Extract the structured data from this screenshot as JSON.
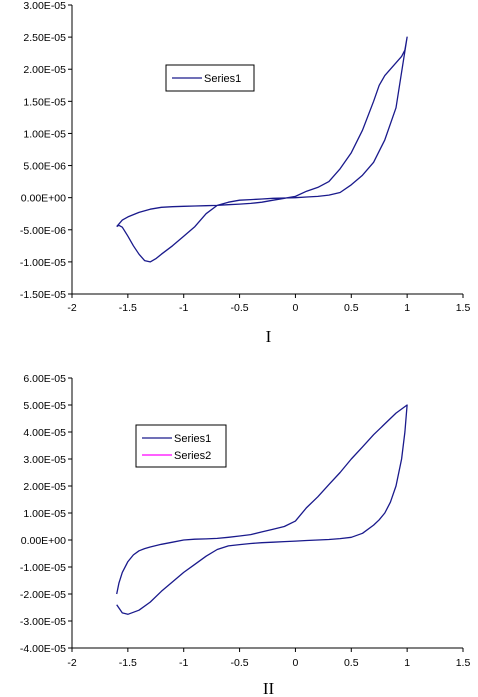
{
  "chart_data": [
    {
      "type": "line",
      "caption": "I",
      "xlim": [
        -2,
        1.5
      ],
      "ylim": [
        -1.5e-05,
        3e-05
      ],
      "x_ticks": [
        "-2",
        "-1.5",
        "-1",
        "-0.5",
        "0",
        "0.5",
        "1",
        "1.5"
      ],
      "y_ticks": [
        "3.00E-05",
        "2.50E-05",
        "2.00E-05",
        "1.50E-05",
        "1.00E-05",
        "5.00E-06",
        "0.00E+00",
        "-5.00E-06",
        "-1.00E-05",
        "-1.50E-05"
      ],
      "legend": {
        "entries": [
          "Series1"
        ],
        "placement": "upper-left"
      },
      "series": [
        {
          "name": "Series1",
          "color": "#1a1a8c",
          "x": [
            -1.6,
            -1.58,
            -1.55,
            -1.5,
            -1.45,
            -1.4,
            -1.35,
            -1.3,
            -1.25,
            -1.2,
            -1.1,
            -1.0,
            -0.9,
            -0.8,
            -0.7,
            -0.6,
            -0.5,
            -0.4,
            -0.3,
            -0.2,
            -0.1,
            0.0,
            0.1,
            0.2,
            0.3,
            0.4,
            0.5,
            0.6,
            0.7,
            0.8,
            0.9,
            1.0,
            0.98,
            0.95,
            0.9,
            0.85,
            0.8,
            0.75,
            0.7,
            0.6,
            0.5,
            0.4,
            0.3,
            0.2,
            0.1,
            0.0,
            -0.1,
            -0.2,
            -0.3,
            -0.4,
            -0.5,
            -0.6,
            -0.7,
            -0.8,
            -0.9,
            -1.0,
            -1.1,
            -1.2,
            -1.3,
            -1.4,
            -1.5,
            -1.55,
            -1.6
          ],
          "y": [
            -4.5e-06,
            -4.3e-06,
            -4.6e-06,
            -6e-06,
            -7.5e-06,
            -8.8e-06,
            -9.8e-06,
            -1e-05,
            -9.5e-06,
            -8.8e-06,
            -7.5e-06,
            -6e-06,
            -4.5e-06,
            -2.5e-06,
            -1.2e-06,
            -7e-07,
            -4e-07,
            -3e-07,
            -2e-07,
            -1e-07,
            -5e-08,
            0.0,
            1e-07,
            2e-07,
            4e-07,
            8e-07,
            2e-06,
            3.5e-06,
            5.5e-06,
            9e-06,
            1.4e-05,
            2.5e-05,
            2.3e-05,
            2.2e-05,
            2.1e-05,
            2e-05,
            1.9e-05,
            1.75e-05,
            1.5e-05,
            1.05e-05,
            7e-06,
            4.5e-06,
            2.5e-06,
            1.6e-06,
            1e-06,
            2e-07,
            -1e-07,
            -4e-07,
            -7e-07,
            -9e-07,
            -1e-06,
            -1.1e-06,
            -1.2e-06,
            -1.25e-06,
            -1.3e-06,
            -1.35e-06,
            -1.4e-06,
            -1.5e-06,
            -1.8e-06,
            -2.3e-06,
            -3e-06,
            -3.5e-06,
            -4.5e-06
          ]
        }
      ]
    },
    {
      "type": "line",
      "caption": "II",
      "xlim": [
        -2,
        1.5
      ],
      "ylim": [
        -4e-05,
        6e-05
      ],
      "x_ticks": [
        "-2",
        "-1.5",
        "-1",
        "-0.5",
        "0",
        "0.5",
        "1",
        "1.5"
      ],
      "y_ticks": [
        "6.00E-05",
        "5.00E-05",
        "4.00E-05",
        "3.00E-05",
        "2.00E-05",
        "1.00E-05",
        "0.00E+00",
        "-1.00E-05",
        "-2.00E-05",
        "-3.00E-05",
        "-4.00E-05"
      ],
      "legend": {
        "entries": [
          "Series1",
          "Series2"
        ],
        "placement": "upper-left"
      },
      "series": [
        {
          "name": "Series1",
          "color": "#1a1a8c",
          "x": [
            -1.6,
            -1.58,
            -1.55,
            -1.5,
            -1.45,
            -1.4,
            -1.35,
            -1.3,
            -1.2,
            -1.1,
            -1.0,
            -0.9,
            -0.8,
            -0.7,
            -0.6,
            -0.5,
            -0.4,
            -0.3,
            -0.2,
            -0.1,
            0.0,
            0.1,
            0.2,
            0.3,
            0.4,
            0.5,
            0.6,
            0.7,
            0.8,
            0.9,
            1.0,
            0.98,
            0.95,
            0.9,
            0.85,
            0.8,
            0.75,
            0.7,
            0.6,
            0.5,
            0.4,
            0.3,
            0.2,
            0.1,
            0.0,
            -0.1,
            -0.2,
            -0.3,
            -0.4,
            -0.5,
            -0.6,
            -0.7,
            -0.8,
            -0.9,
            -1.0,
            -1.1,
            -1.2,
            -1.3,
            -1.4,
            -1.5,
            -1.55,
            -1.6
          ],
          "y": [
            -2e-05,
            -1.6e-05,
            -1.2e-05,
            -8e-06,
            -5.5e-06,
            -4e-06,
            -3.2e-06,
            -2.6e-06,
            -1.6e-06,
            -8e-07,
            0.0,
            3e-07,
            4e-07,
            6e-07,
            1e-06,
            1.5e-06,
            2e-06,
            3e-06,
            4e-06,
            5e-06,
            7e-06,
            1.2e-05,
            1.6e-05,
            2.05e-05,
            2.5e-05,
            3e-05,
            3.45e-05,
            3.9e-05,
            4.3e-05,
            4.7e-05,
            5e-05,
            4e-05,
            3e-05,
            2e-05,
            1.4e-05,
            1e-05,
            7.5e-06,
            5.5e-06,
            2.5e-06,
            1e-06,
            5e-07,
            2e-07,
            0.0,
            -2e-07,
            -4e-07,
            -6e-07,
            -8e-07,
            -1e-06,
            -1.3e-06,
            -1.7e-06,
            -2.2e-06,
            -3.5e-06,
            -6e-06,
            -9e-06,
            -1.2e-05,
            -1.55e-05,
            -1.9e-05,
            -2.3e-05,
            -2.6e-05,
            -2.75e-05,
            -2.7e-05,
            -2.4e-05
          ]
        },
        {
          "name": "Series2",
          "color": "#ff00ff",
          "x": [],
          "y": []
        }
      ]
    }
  ]
}
